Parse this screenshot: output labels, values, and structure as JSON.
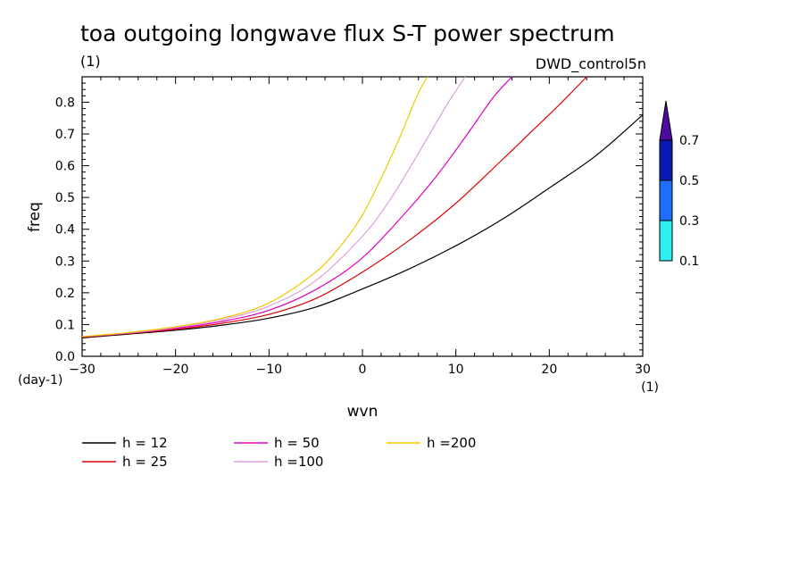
{
  "header": {
    "title": "toa outgoing longwave flux S-T power spectrum",
    "units": "(1)",
    "dataset": "DWD_control5n"
  },
  "chart_data": {
    "type": "line",
    "title": "toa outgoing longwave flux S-T power spectrum",
    "xlabel": "wvn",
    "ylabel": "freq",
    "x_unit": "(1)",
    "y_unit": "(day-1)",
    "xlim": [
      -30,
      30
    ],
    "ylim": [
      0,
      0.88
    ],
    "x_ticks": [
      -30,
      -20,
      -10,
      0,
      10,
      20,
      30
    ],
    "y_ticks": [
      0.0,
      0.1,
      0.2,
      0.3,
      0.4,
      0.5,
      0.6,
      0.7,
      0.8
    ],
    "y_tick_labels": [
      "0.0",
      "0.1",
      "0.2",
      "0.3",
      "0.4",
      "0.5",
      "0.6",
      "0.7",
      "0.8"
    ],
    "series": [
      {
        "name": "h = 12",
        "color": "#000000",
        "x": [
          -30,
          -25,
          -20,
          -15,
          -10,
          -5,
          0,
          5,
          10,
          15,
          20,
          25,
          30
        ],
        "y": [
          0.058,
          0.07,
          0.082,
          0.098,
          0.12,
          0.155,
          0.212,
          0.275,
          0.348,
          0.432,
          0.53,
          0.632,
          0.76
        ]
      },
      {
        "name": "h = 25",
        "color": "#dd0000",
        "x": [
          -30,
          -25,
          -20,
          -15,
          -10,
          -5,
          0,
          5,
          10,
          15,
          18,
          21,
          24
        ],
        "y": [
          0.06,
          0.072,
          0.085,
          0.104,
          0.132,
          0.182,
          0.265,
          0.365,
          0.482,
          0.62,
          0.705,
          0.79,
          0.88
        ]
      },
      {
        "name": "h = 50",
        "color": "#e000c0",
        "x": [
          -30,
          -25,
          -20,
          -15,
          -10,
          -5,
          0,
          5,
          8,
          11,
          14,
          16
        ],
        "y": [
          0.061,
          0.073,
          0.088,
          0.11,
          0.145,
          0.21,
          0.31,
          0.465,
          0.57,
          0.69,
          0.815,
          0.88
        ]
      },
      {
        "name": "h =100",
        "color": "#dda0dd",
        "x": [
          -30,
          -25,
          -20,
          -15,
          -10,
          -5,
          0,
          3,
          6,
          9,
          11
        ],
        "y": [
          0.062,
          0.074,
          0.091,
          0.116,
          0.158,
          0.238,
          0.378,
          0.495,
          0.64,
          0.79,
          0.88
        ]
      },
      {
        "name": "h =200",
        "color": "#f0c800",
        "x": [
          -30,
          -25,
          -20,
          -15,
          -10,
          -5,
          -2,
          0,
          2,
          4,
          6,
          7
        ],
        "y": [
          0.062,
          0.075,
          0.093,
          0.12,
          0.168,
          0.265,
          0.36,
          0.445,
          0.56,
          0.69,
          0.83,
          0.88
        ]
      }
    ],
    "colorbar": {
      "labels": [
        "0.7",
        "0.5",
        "0.3",
        "0.1"
      ],
      "colors": [
        "#4b0aa0",
        "#0a1ab0",
        "#1e6eff",
        "#2ef2f2"
      ]
    },
    "legend": {
      "position": "bottom-left"
    }
  }
}
